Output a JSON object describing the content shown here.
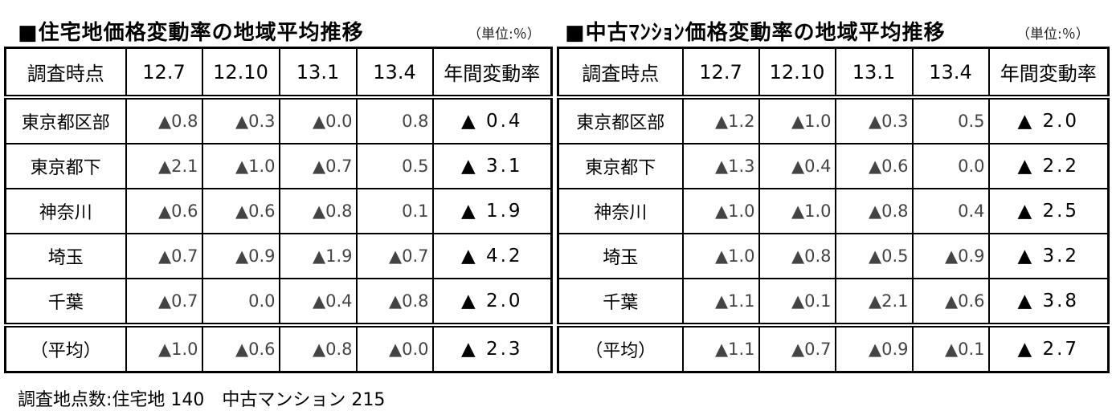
{
  "tables": [
    {
      "title": "■住宅地価格変動率の地域平均推移",
      "unit": "（単位:％）",
      "headers": [
        "調査時点",
        "12.7",
        "12.10",
        "13.1",
        "13.4",
        "年間変動率"
      ],
      "rows": [
        {
          "label": "東京都区部",
          "values": [
            "▲0.8",
            "▲0.3",
            "▲0.0",
            "0.8"
          ],
          "annual": "▲ 0.4"
        },
        {
          "label": "東京都下",
          "values": [
            "▲2.1",
            "▲1.0",
            "▲0.7",
            "0.5"
          ],
          "annual": "▲ 3.1"
        },
        {
          "label": "神奈川",
          "values": [
            "▲0.6",
            "▲0.6",
            "▲0.8",
            "0.1"
          ],
          "annual": "▲ 1.9"
        },
        {
          "label": "埼玉",
          "values": [
            "▲0.7",
            "▲0.9",
            "▲1.9",
            "▲0.7"
          ],
          "annual": "▲ 4.2"
        },
        {
          "label": "千葉",
          "values": [
            "▲0.7",
            "0.0",
            "▲0.4",
            "▲0.8"
          ],
          "annual": "▲ 2.0"
        }
      ],
      "average": {
        "label": "（平均）",
        "values": [
          "▲1.0",
          "▲0.6",
          "▲0.8",
          "▲0.0"
        ],
        "annual": "▲ 2.3"
      }
    },
    {
      "title": "■中古ﾏﾝｼｮﾝ価格変動率の地域平均推移",
      "unit": "（単位:％）",
      "headers": [
        "調査時点",
        "12.7",
        "12.10",
        "13.1",
        "13.4",
        "年間変動率"
      ],
      "rows": [
        {
          "label": "東京都区部",
          "values": [
            "▲1.2",
            "▲1.0",
            "▲0.3",
            "0.5"
          ],
          "annual": "▲ 2.0"
        },
        {
          "label": "東京都下",
          "values": [
            "▲1.3",
            "▲0.4",
            "▲0.6",
            "0.0"
          ],
          "annual": "▲ 2.2"
        },
        {
          "label": "神奈川",
          "values": [
            "▲1.0",
            "▲1.0",
            "▲0.8",
            "0.4"
          ],
          "annual": "▲ 2.5"
        },
        {
          "label": "埼玉",
          "values": [
            "▲1.0",
            "▲0.8",
            "▲0.5",
            "▲0.9"
          ],
          "annual": "▲ 3.2"
        },
        {
          "label": "千葉",
          "values": [
            "▲1.1",
            "▲0.1",
            "▲2.1",
            "▲0.6"
          ],
          "annual": "▲ 3.8"
        }
      ],
      "average": {
        "label": "（平均）",
        "values": [
          "▲1.1",
          "▲0.7",
          "▲0.9",
          "▲0.1"
        ],
        "annual": "▲ 2.7"
      }
    }
  ],
  "footer": "調査地点数:住宅地 140　中古マンション 215"
}
